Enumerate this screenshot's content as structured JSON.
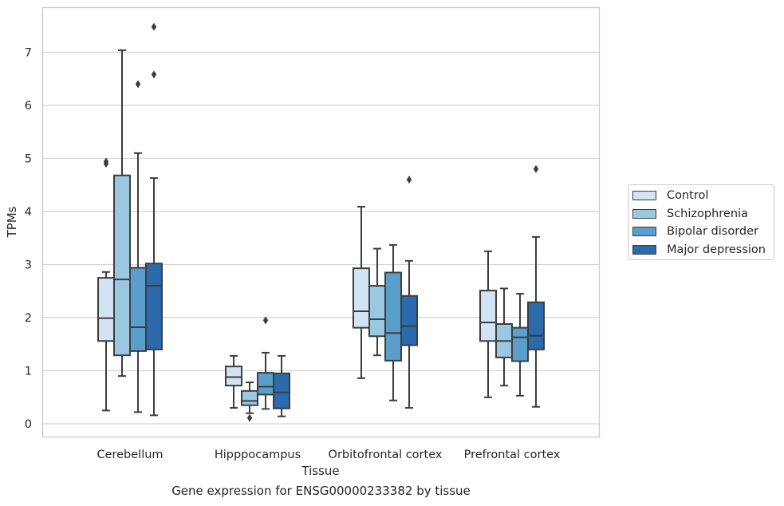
{
  "chart_data": {
    "type": "box",
    "title": "Gene expression for ENSG00000233382 by tissue",
    "xlabel": "Tissue",
    "ylabel": "TPMs",
    "ylim": [
      -0.25,
      7.8
    ],
    "yticks": [
      0,
      1,
      2,
      3,
      4,
      5,
      6,
      7
    ],
    "grid": "horizontal",
    "legend_position": "right",
    "categories": [
      "Cerebellum",
      "Hipppocampus",
      "Orbitofrontal cortex",
      "Prefrontal cortex"
    ],
    "series": [
      {
        "name": "Control",
        "color": "#d2e3f3",
        "boxes": [
          {
            "whisker_low": 0.25,
            "q1": 1.56,
            "median": 1.99,
            "q3": 2.75,
            "whisker_high": 2.86,
            "outliers": [
              4.9,
              4.94
            ]
          },
          {
            "whisker_low": 0.3,
            "q1": 0.72,
            "median": 0.88,
            "q3": 1.08,
            "whisker_high": 1.28,
            "outliers": []
          },
          {
            "whisker_low": 0.86,
            "q1": 1.81,
            "median": 2.12,
            "q3": 2.93,
            "whisker_high": 4.09,
            "outliers": []
          },
          {
            "whisker_low": 0.5,
            "q1": 1.56,
            "median": 1.91,
            "q3": 2.51,
            "whisker_high": 3.25,
            "outliers": []
          }
        ]
      },
      {
        "name": "Schizophrenia",
        "color": "#9ac8e0",
        "boxes": [
          {
            "whisker_low": 0.9,
            "q1": 1.29,
            "median": 2.72,
            "q3": 4.68,
            "whisker_high": 7.04,
            "outliers": []
          },
          {
            "whisker_low": 0.2,
            "q1": 0.35,
            "median": 0.43,
            "q3": 0.62,
            "whisker_high": 0.78,
            "outliers": [
              0.11
            ]
          },
          {
            "whisker_low": 1.29,
            "q1": 1.65,
            "median": 1.97,
            "q3": 2.6,
            "whisker_high": 3.3,
            "outliers": []
          },
          {
            "whisker_low": 0.72,
            "q1": 1.25,
            "median": 1.56,
            "q3": 1.88,
            "whisker_high": 2.55,
            "outliers": []
          }
        ]
      },
      {
        "name": "Bipolar disorder",
        "color": "#5a9fcb",
        "boxes": [
          {
            "whisker_low": 0.22,
            "q1": 1.37,
            "median": 1.82,
            "q3": 2.94,
            "whisker_high": 5.1,
            "outliers": [
              6.4
            ]
          },
          {
            "whisker_low": 0.28,
            "q1": 0.55,
            "median": 0.7,
            "q3": 0.96,
            "whisker_high": 1.34,
            "outliers": [
              1.95
            ]
          },
          {
            "whisker_low": 0.44,
            "q1": 1.19,
            "median": 1.71,
            "q3": 2.85,
            "whisker_high": 3.37,
            "outliers": []
          },
          {
            "whisker_low": 0.53,
            "q1": 1.18,
            "median": 1.63,
            "q3": 1.81,
            "whisker_high": 2.45,
            "outliers": []
          }
        ]
      },
      {
        "name": "Major depression",
        "color": "#2b6aac",
        "boxes": [
          {
            "whisker_low": 0.16,
            "q1": 1.4,
            "median": 2.6,
            "q3": 3.02,
            "whisker_high": 4.63,
            "outliers": [
              6.58,
              7.48
            ]
          },
          {
            "whisker_low": 0.14,
            "q1": 0.29,
            "median": 0.59,
            "q3": 0.95,
            "whisker_high": 1.28,
            "outliers": []
          },
          {
            "whisker_low": 0.3,
            "q1": 1.48,
            "median": 1.84,
            "q3": 2.41,
            "whisker_high": 3.07,
            "outliers": [
              4.6
            ]
          },
          {
            "whisker_low": 0.32,
            "q1": 1.4,
            "median": 1.66,
            "q3": 2.29,
            "whisker_high": 3.52,
            "outliers": [
              4.8
            ]
          }
        ]
      }
    ]
  }
}
